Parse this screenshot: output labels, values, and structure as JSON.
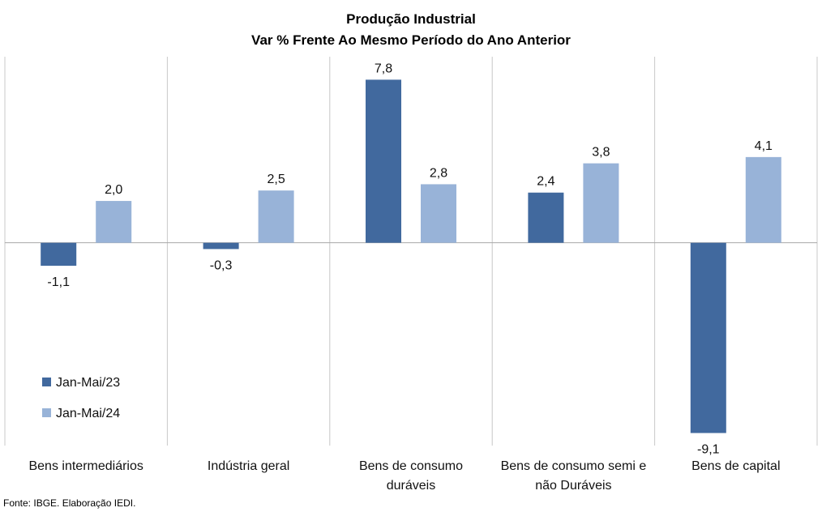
{
  "chart_data": {
    "type": "bar",
    "title": [
      "Produção  Industrial",
      "Var % Frente Ao Mesmo Período do Ano Anterior"
    ],
    "categories": [
      [
        "Bens intermediários"
      ],
      [
        "Indústria geral"
      ],
      [
        "Bens de consumo",
        "duráveis"
      ],
      [
        "Bens de consumo semi e",
        "não Duráveis"
      ],
      [
        "Bens de capital"
      ]
    ],
    "series": [
      {
        "name": "Jan-Mai/23",
        "color": "#41699E",
        "values": [
          -1.1,
          -0.3,
          7.8,
          2.4,
          -9.1
        ],
        "labels": [
          "-1,1",
          "-0,3",
          "7,8",
          "2,4",
          "-9,1"
        ]
      },
      {
        "name": "Jan-Mai/24",
        "color": "#98B3D8",
        "values": [
          2.0,
          2.5,
          2.8,
          3.8,
          4.1
        ],
        "labels": [
          "2,0",
          "2,5",
          "2,8",
          "3,8",
          "4,1"
        ]
      }
    ],
    "ylim": [
      -9.7,
      8.9
    ],
    "grid": "vertical category separators",
    "legend": "bottom-left",
    "xlabel": "",
    "ylabel": ""
  },
  "source": "Fonte: IBGE. Elaboração IEDI."
}
